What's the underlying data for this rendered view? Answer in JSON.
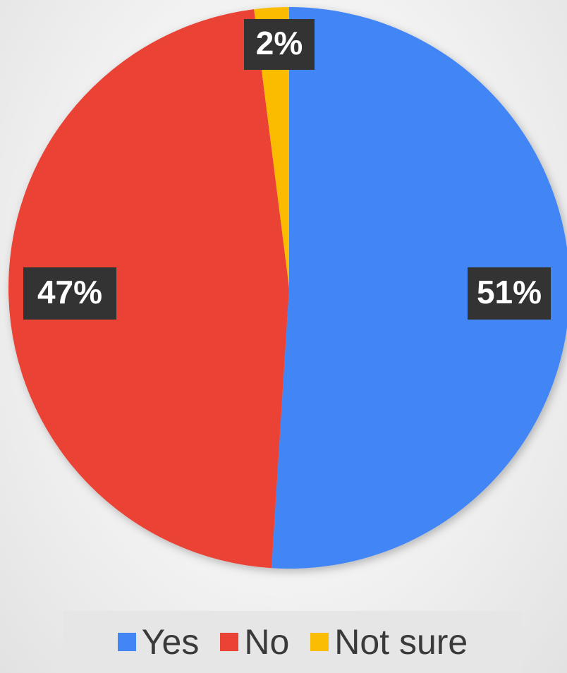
{
  "chart_data": {
    "type": "pie",
    "title": "",
    "start_angle_deg": 0,
    "direction": "clockwise",
    "slices": [
      {
        "label": "Yes",
        "value": 51,
        "display": "51%",
        "color": "#4285F4"
      },
      {
        "label": "No",
        "value": 47,
        "display": "47%",
        "color": "#EA4335"
      },
      {
        "label": "Not sure",
        "value": 2,
        "display": "2%",
        "color": "#FBBC04"
      }
    ],
    "legend": {
      "position": "bottom",
      "items": [
        "Yes",
        "No",
        "Not sure"
      ]
    }
  }
}
